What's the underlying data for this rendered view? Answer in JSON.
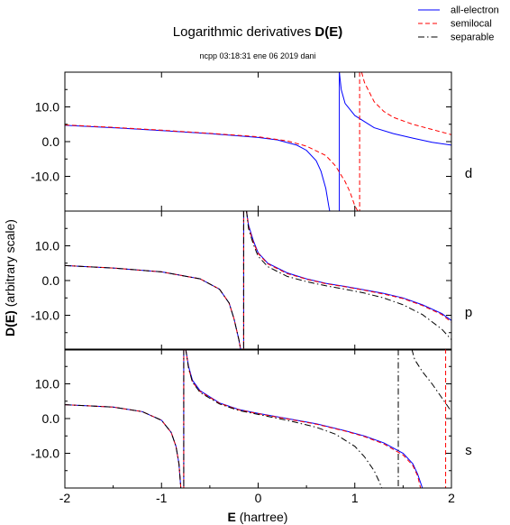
{
  "chart_data": {
    "type": "line",
    "title_plain": "Logarithmic derivatives ",
    "title_bold": "D(E)",
    "subtitle": "ncpp 03:18:31 ene 06 2019 dani",
    "xlabel_bold": "E",
    "xlabel_rest": " (hartree)",
    "ylabel_bold": "D(E)",
    "ylabel_rest": "  (arbitrary scale)",
    "xlim": [
      -2,
      2
    ],
    "ylim": [
      -20,
      20
    ],
    "xticks": [
      -2,
      -1,
      0,
      1,
      2
    ],
    "xtick_labels": [
      "-2",
      "-1",
      "0",
      "1",
      "2"
    ],
    "yticks": [
      10,
      0,
      -10
    ],
    "ytick_labels": [
      "10.0",
      "0.0",
      "-10.0"
    ],
    "grid": false,
    "legend_position": "top-right",
    "legend": [
      {
        "label": "all-electron",
        "color": "#0000ff",
        "dash": "solid"
      },
      {
        "label": "semilocal",
        "color": "#ff0000",
        "dash": "dashed"
      },
      {
        "label": "separable",
        "color": "#000000",
        "dash": "dashdot"
      }
    ],
    "panels": [
      {
        "channel": "d",
        "series": [
          {
            "legend_index": 0,
            "segments": [
              [
                [
                  -2,
                  4.7
                ],
                [
                  -1.5,
                  4.0
                ],
                [
                  -1.0,
                  3.2
                ],
                [
                  -0.5,
                  2.3
                ],
                [
                  0.0,
                  1.2
                ],
                [
                  0.2,
                  0.5
                ],
                [
                  0.4,
                  -1.0
                ],
                [
                  0.5,
                  -2.5
                ],
                [
                  0.6,
                  -5.5
                ],
                [
                  0.65,
                  -8.5
                ],
                [
                  0.7,
                  -13.5
                ],
                [
                  0.73,
                  -18.5
                ],
                [
                  0.74,
                  -20
                ]
              ],
              [
                [
                  0.84,
                  20
                ],
                [
                  0.86,
                  15
                ],
                [
                  0.9,
                  11
                ],
                [
                  1.0,
                  7.5
                ],
                [
                  1.2,
                  4.0
                ],
                [
                  1.4,
                  2.3
                ],
                [
                  1.6,
                  1.0
                ],
                [
                  1.8,
                  -0.2
                ],
                [
                  2.0,
                  -1.0
                ]
              ]
            ],
            "vlines": [
              0.84
            ]
          },
          {
            "legend_index": 1,
            "segments": [
              [
                [
                  -2,
                  4.8
                ],
                [
                  -1.5,
                  4.1
                ],
                [
                  -1.0,
                  3.3
                ],
                [
                  -0.5,
                  2.4
                ],
                [
                  0.0,
                  1.4
                ],
                [
                  0.3,
                  0.2
                ],
                [
                  0.5,
                  -1.3
                ],
                [
                  0.7,
                  -4.0
                ],
                [
                  0.8,
                  -7.0
                ],
                [
                  0.9,
                  -11.5
                ],
                [
                  0.95,
                  -14.5
                ],
                [
                  1.0,
                  -18.5
                ],
                [
                  1.03,
                  -20
                ]
              ],
              [
                [
                  1.07,
                  20
                ],
                [
                  1.1,
                  17
                ],
                [
                  1.2,
                  11.5
                ],
                [
                  1.3,
                  8.7
                ],
                [
                  1.4,
                  7.0
                ],
                [
                  1.6,
                  5.0
                ],
                [
                  1.8,
                  3.5
                ],
                [
                  2.0,
                  2.0
                ]
              ]
            ],
            "vlines": [
              1.05
            ]
          }
        ]
      },
      {
        "channel": "p",
        "series": [
          {
            "legend_index": 0,
            "segments": [
              [
                [
                  -2,
                  4.3
                ],
                [
                  -1.5,
                  3.6
                ],
                [
                  -1.0,
                  2.5
                ],
                [
                  -0.6,
                  0.5
                ],
                [
                  -0.4,
                  -2.5
                ],
                [
                  -0.3,
                  -6.5
                ],
                [
                  -0.25,
                  -11.0
                ],
                [
                  -0.2,
                  -17.0
                ],
                [
                  -0.18,
                  -20
                ]
              ],
              [
                [
                  -0.12,
                  20
                ],
                [
                  -0.1,
                  16
                ],
                [
                  -0.05,
                  11.5
                ],
                [
                  0.0,
                  8.0
                ],
                [
                  0.1,
                  5.0
                ],
                [
                  0.3,
                  2.2
                ],
                [
                  0.5,
                  0.5
                ],
                [
                  0.7,
                  -0.8
                ],
                [
                  0.9,
                  -1.7
                ],
                [
                  1.1,
                  -2.7
                ],
                [
                  1.3,
                  -3.7
                ],
                [
                  1.5,
                  -5.0
                ],
                [
                  1.7,
                  -7.0
                ],
                [
                  1.9,
                  -9.5
                ],
                [
                  2.0,
                  -11.5
                ]
              ]
            ],
            "vlines": [
              -0.15
            ]
          },
          {
            "legend_index": 1,
            "segments": [
              [
                [
                  -2,
                  4.3
                ],
                [
                  -1.5,
                  3.6
                ],
                [
                  -1.0,
                  2.5
                ],
                [
                  -0.6,
                  0.5
                ],
                [
                  -0.4,
                  -2.5
                ],
                [
                  -0.3,
                  -6.5
                ],
                [
                  -0.25,
                  -11.0
                ],
                [
                  -0.2,
                  -17.0
                ],
                [
                  -0.18,
                  -20
                ]
              ],
              [
                [
                  -0.12,
                  20
                ],
                [
                  -0.1,
                  15.5
                ],
                [
                  -0.05,
                  11.0
                ],
                [
                  0.0,
                  7.8
                ],
                [
                  0.1,
                  4.8
                ],
                [
                  0.3,
                  2.0
                ],
                [
                  0.5,
                  0.4
                ],
                [
                  0.7,
                  -0.9
                ],
                [
                  0.9,
                  -1.8
                ],
                [
                  1.1,
                  -2.8
                ],
                [
                  1.3,
                  -3.9
                ],
                [
                  1.5,
                  -5.2
                ],
                [
                  1.7,
                  -7.2
                ],
                [
                  1.9,
                  -9.8
                ],
                [
                  2.0,
                  -12.0
                ]
              ]
            ],
            "vlines": [
              -0.15
            ]
          },
          {
            "legend_index": 2,
            "segments": [
              [
                [
                  -2,
                  4.3
                ],
                [
                  -1.5,
                  3.6
                ],
                [
                  -1.0,
                  2.5
                ],
                [
                  -0.6,
                  0.5
                ],
                [
                  -0.4,
                  -2.5
                ],
                [
                  -0.3,
                  -6.5
                ],
                [
                  -0.25,
                  -11.0
                ],
                [
                  -0.2,
                  -17.0
                ],
                [
                  -0.18,
                  -20
                ]
              ],
              [
                [
                  -0.12,
                  20
                ],
                [
                  -0.1,
                  15
                ],
                [
                  -0.05,
                  10.5
                ],
                [
                  0.0,
                  7.0
                ],
                [
                  0.1,
                  4.0
                ],
                [
                  0.3,
                  1.2
                ],
                [
                  0.5,
                  -0.3
                ],
                [
                  0.7,
                  -1.5
                ],
                [
                  0.9,
                  -2.5
                ],
                [
                  1.1,
                  -3.6
                ],
                [
                  1.3,
                  -5.0
                ],
                [
                  1.5,
                  -7.0
                ],
                [
                  1.7,
                  -9.8
                ],
                [
                  1.9,
                  -14.0
                ],
                [
                  2.0,
                  -17.0
                ]
              ]
            ],
            "vlines": [
              -0.15
            ]
          }
        ]
      },
      {
        "channel": "s",
        "series": [
          {
            "legend_index": 0,
            "segments": [
              [
                [
                  -2,
                  4.0
                ],
                [
                  -1.5,
                  3.3
                ],
                [
                  -1.2,
                  2.0
                ],
                [
                  -1.0,
                  -0.5
                ],
                [
                  -0.9,
                  -4.0
                ],
                [
                  -0.85,
                  -8.0
                ],
                [
                  -0.82,
                  -13.0
                ],
                [
                  -0.8,
                  -20
                ]
              ],
              [
                [
                  -0.75,
                  20
                ],
                [
                  -0.72,
                  15.0
                ],
                [
                  -0.68,
                  11.0
                ],
                [
                  -0.6,
                  8.0
                ],
                [
                  -0.4,
                  4.5
                ],
                [
                  -0.2,
                  2.6
                ],
                [
                  0.0,
                  1.5
                ],
                [
                  0.3,
                  0.0
                ],
                [
                  0.6,
                  -1.5
                ],
                [
                  0.9,
                  -3.5
                ],
                [
                  1.1,
                  -5.0
                ],
                [
                  1.3,
                  -7.0
                ],
                [
                  1.5,
                  -10.0
                ],
                [
                  1.6,
                  -13.0
                ],
                [
                  1.65,
                  -16.0
                ],
                [
                  1.7,
                  -20
                ]
              ]
            ],
            "vlines": [
              -0.77
            ]
          },
          {
            "legend_index": 1,
            "segments": [
              [
                [
                  -2,
                  4.0
                ],
                [
                  -1.5,
                  3.3
                ],
                [
                  -1.2,
                  2.0
                ],
                [
                  -1.0,
                  -0.5
                ],
                [
                  -0.9,
                  -4.0
                ],
                [
                  -0.85,
                  -8.0
                ],
                [
                  -0.82,
                  -13.0
                ],
                [
                  -0.8,
                  -20
                ]
              ],
              [
                [
                  -0.75,
                  20
                ],
                [
                  -0.72,
                  14.5
                ],
                [
                  -0.68,
                  10.5
                ],
                [
                  -0.6,
                  7.8
                ],
                [
                  -0.4,
                  4.4
                ],
                [
                  -0.2,
                  2.5
                ],
                [
                  0.0,
                  1.4
                ],
                [
                  0.3,
                  -0.1
                ],
                [
                  0.6,
                  -1.6
                ],
                [
                  0.9,
                  -3.6
                ],
                [
                  1.1,
                  -5.2
                ],
                [
                  1.3,
                  -7.3
                ],
                [
                  1.5,
                  -10.5
                ],
                [
                  1.6,
                  -13.5
                ],
                [
                  1.65,
                  -16.5
                ],
                [
                  1.68,
                  -20
                ]
              ]
            ],
            "vlines": [
              -0.77,
              1.94
            ]
          },
          {
            "legend_index": 2,
            "segments": [
              [
                [
                  -2,
                  4.0
                ],
                [
                  -1.5,
                  3.3
                ],
                [
                  -1.2,
                  2.0
                ],
                [
                  -1.0,
                  -0.5
                ],
                [
                  -0.9,
                  -4.0
                ],
                [
                  -0.85,
                  -8.0
                ],
                [
                  -0.82,
                  -13.0
                ],
                [
                  -0.8,
                  -20
                ]
              ],
              [
                [
                  -0.75,
                  20
                ],
                [
                  -0.72,
                  14.5
                ],
                [
                  -0.68,
                  10.5
                ],
                [
                  -0.6,
                  7.5
                ],
                [
                  -0.4,
                  4.2
                ],
                [
                  -0.2,
                  2.3
                ],
                [
                  0.0,
                  1.2
                ],
                [
                  0.3,
                  -0.5
                ],
                [
                  0.6,
                  -2.5
                ],
                [
                  0.8,
                  -4.5
                ],
                [
                  1.0,
                  -8.0
                ],
                [
                  1.1,
                  -11.0
                ],
                [
                  1.2,
                  -15.0
                ],
                [
                  1.25,
                  -18.0
                ],
                [
                  1.28,
                  -20
                ]
              ],
              [
                [
                  1.59,
                  20
                ],
                [
                  1.62,
                  17.0
                ],
                [
                  1.7,
                  13.5
                ],
                [
                  1.8,
                  10.0
                ],
                [
                  1.9,
                  6.0
                ],
                [
                  2.0,
                  2.0
                ]
              ]
            ],
            "vlines": [
              -0.77,
              1.45
            ]
          }
        ]
      }
    ]
  }
}
